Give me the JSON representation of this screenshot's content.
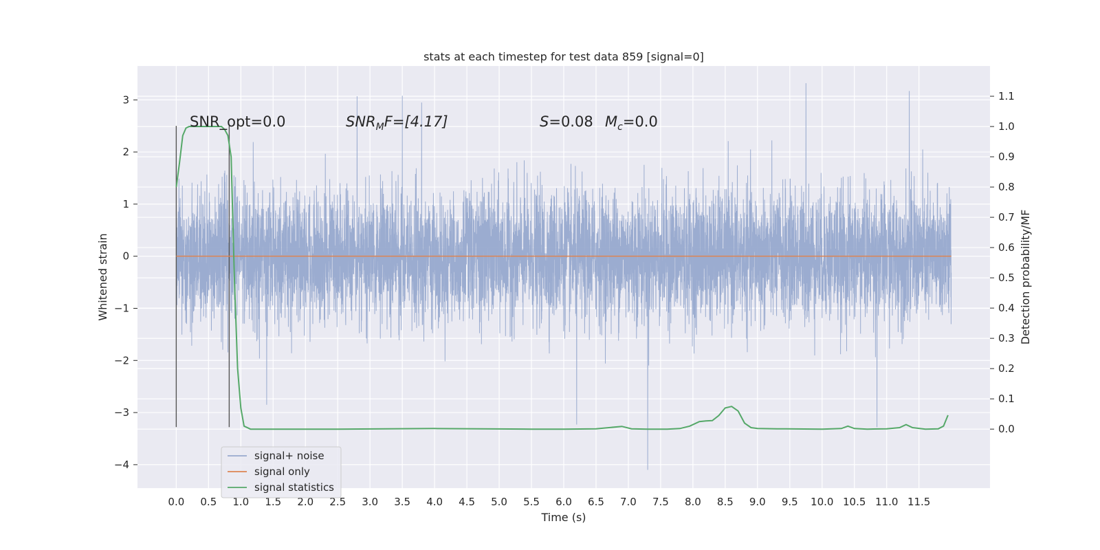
{
  "chart_data": {
    "type": "line",
    "title": "stats at each timestep for test data 859 [signal=0]",
    "xlabel": "Time (s)",
    "ylabel": "Whitened strain",
    "y2label": "Detection probability/MF",
    "xlim": [
      -0.6,
      12.6
    ],
    "ylim": [
      -4.45,
      3.65
    ],
    "y2lim": [
      -0.195,
      1.2
    ],
    "grid": true,
    "legend_position": "bottom-left",
    "x_ticks": [
      "0.0",
      "0.5",
      "1.0",
      "1.5",
      "2.0",
      "2.5",
      "3.0",
      "3.5",
      "4.0",
      "4.5",
      "5.0",
      "5.5",
      "6.0",
      "6.5",
      "7.0",
      "7.5",
      "8.0",
      "8.5",
      "9.0",
      "9.5",
      "10.0",
      "10.5",
      "11.0",
      "11.5"
    ],
    "y_ticks": [
      "3",
      "2",
      "1",
      "0",
      "−1",
      "−2",
      "−3",
      "−4"
    ],
    "y2_ticks": [
      "1.1",
      "1.0",
      "0.9",
      "0.8",
      "0.7",
      "0.6",
      "0.5",
      "0.4",
      "0.3",
      "0.2",
      "0.1",
      "0.0"
    ],
    "annotations": {
      "snr_opt": "SNR_opt=0.0",
      "snr_mf_base": "SNR",
      "snr_mf_sub": "M",
      "snr_mf_rest": "F=[4.17]",
      "s_base": "S",
      "s_rest": "=0.08",
      "mc_base": "M",
      "mc_sub": "c",
      "mc_rest": "=0.0"
    },
    "vertical_lines_x": [
      0.0,
      0.82
    ],
    "series": [
      {
        "name": "signal+ noise",
        "color": "#97a9cd",
        "x_range": [
          0.0,
          12.0
        ],
        "typical_amplitude": 1.35,
        "max_value": 3.32,
        "min_value": -4.1,
        "notable_peaks": [
          [
            2.8,
            3.07
          ],
          [
            3.5,
            3.08
          ],
          [
            3.8,
            2.95
          ],
          [
            9.75,
            3.32
          ],
          [
            11.35,
            3.17
          ],
          [
            7.3,
            -4.1
          ],
          [
            6.2,
            -3.23
          ],
          [
            10.85,
            -3.28
          ],
          [
            1.4,
            -2.85
          ]
        ]
      },
      {
        "name": "signal only",
        "color": "#dd8452",
        "x": [
          0.0,
          12.0
        ],
        "values": [
          0.0,
          0.0
        ]
      },
      {
        "name": "signal statistics",
        "color": "#55a868",
        "axis": "right",
        "x": [
          0.0,
          0.05,
          0.1,
          0.15,
          0.2,
          0.3,
          0.5,
          0.7,
          0.75,
          0.8,
          0.85,
          0.9,
          0.95,
          1.0,
          1.05,
          1.15,
          1.5,
          2.5,
          4.0,
          5.5,
          6.0,
          6.5,
          6.7,
          6.9,
          7.05,
          7.3,
          7.6,
          7.8,
          7.95,
          8.1,
          8.2,
          8.3,
          8.4,
          8.5,
          8.6,
          8.7,
          8.8,
          8.9,
          9.0,
          9.3,
          10.0,
          10.3,
          10.4,
          10.5,
          10.7,
          11.0,
          11.2,
          11.3,
          11.4,
          11.6,
          11.8,
          11.88,
          11.95
        ],
        "values": [
          0.8,
          0.88,
          0.97,
          0.995,
          1.0,
          1.0,
          1.0,
          1.0,
          0.99,
          0.97,
          0.9,
          0.5,
          0.2,
          0.07,
          0.01,
          0.0,
          0.0,
          0.0,
          0.002,
          0.0,
          0.0,
          0.001,
          0.005,
          0.009,
          0.001,
          0.0,
          0.0,
          0.002,
          0.01,
          0.025,
          0.027,
          0.028,
          0.045,
          0.07,
          0.075,
          0.06,
          0.02,
          0.005,
          0.002,
          0.001,
          0.0,
          0.002,
          0.01,
          0.002,
          0.0,
          0.001,
          0.005,
          0.015,
          0.005,
          0.0,
          0.001,
          0.01,
          0.046
        ]
      }
    ]
  }
}
